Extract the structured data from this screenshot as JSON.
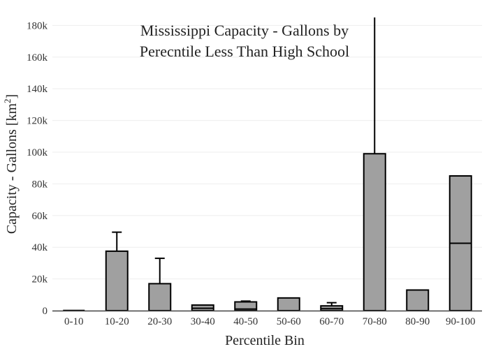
{
  "chart_data": {
    "type": "bar",
    "title_lines": [
      "Mississippi Capacity - Gallons by",
      "Perecntile Less Than High School"
    ],
    "xlabel": "Percentile Bin",
    "ylabel_main": "Capacity - Gallons  [km",
    "ylabel_sup": "2",
    "ylabel_end": "]",
    "ylim": [
      0,
      185000
    ],
    "yticks": [
      0,
      20000,
      40000,
      60000,
      80000,
      100000,
      120000,
      140000,
      160000,
      180000
    ],
    "ytick_labels": [
      "0",
      "20k",
      "40k",
      "60k",
      "80k",
      "100k",
      "120k",
      "140k",
      "160k",
      "180k"
    ],
    "grid": true,
    "categories": [
      "0-10",
      "10-20",
      "20-30",
      "30-40",
      "40-50",
      "50-60",
      "60-70",
      "70-80",
      "80-90",
      "90-100"
    ],
    "values": [
      0,
      37500,
      17000,
      3500,
      5500,
      8000,
      3000,
      99000,
      13000,
      85000
    ],
    "inner_lines": [
      [],
      [],
      [],
      [
        1500
      ],
      [
        1000
      ],
      [],
      [
        1200
      ],
      [],
      [],
      [
        42500
      ]
    ],
    "error_top": [
      null,
      49500,
      33000,
      null,
      6000,
      null,
      5000,
      185000,
      null,
      null
    ],
    "colors": {
      "bar_fill": "#a0a0a0",
      "bar_stroke": "#000000",
      "grid": "#eeeeee",
      "axis": "#444444"
    }
  }
}
